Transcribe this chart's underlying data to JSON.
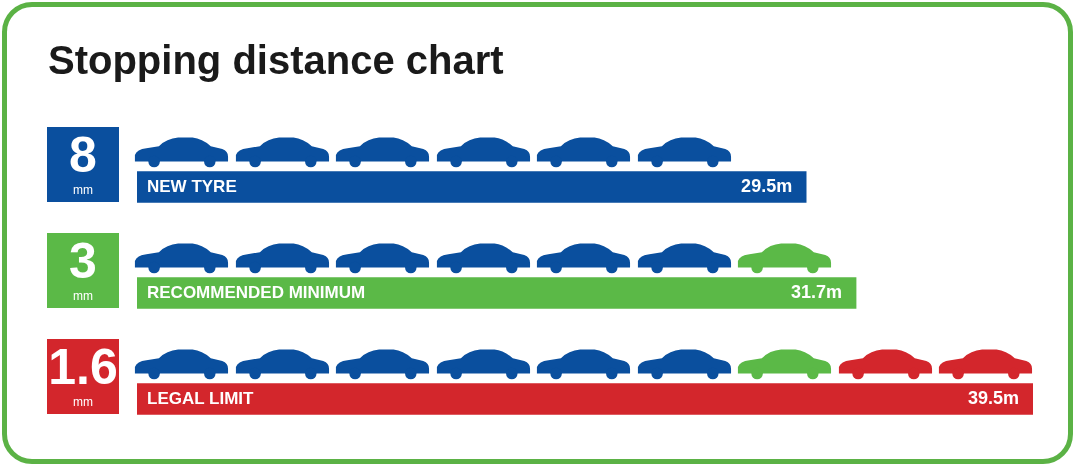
{
  "chart_data": {
    "type": "bar",
    "orientation": "horizontal",
    "title": "Stopping distance chart",
    "categories": [
      "8 mm",
      "3 mm",
      "1.6 mm"
    ],
    "values": [
      29.5,
      31.7,
      39.5
    ],
    "colors": [
      "#0a4f9e",
      "#5bb947",
      "#d3262c"
    ],
    "value_labels": [
      "29.5m",
      "31.7m",
      "39.5m"
    ],
    "annotations": [
      "NEW TYRE",
      "RECOMMENDED MINIMUM",
      "LEGAL LIMIT"
    ]
  }
}
